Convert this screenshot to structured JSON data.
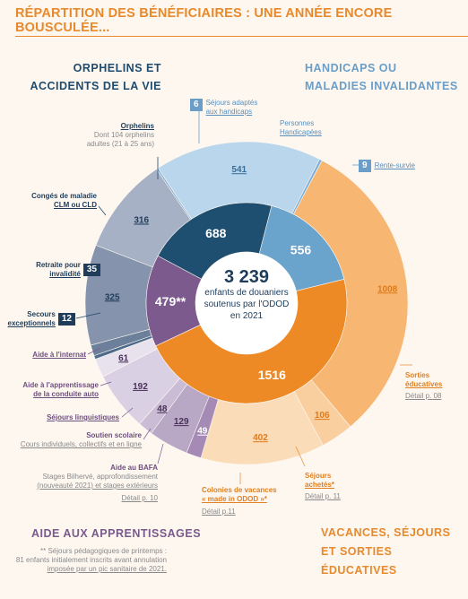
{
  "title": "RÉPARTITION DES BÉNÉFICIAIRES : UNE ANNÉE ENCORE BOUSCULÉE...",
  "sections": {
    "orphelins": [
      "ORPHELINS ET",
      "ACCIDENTS DE LA VIE"
    ],
    "handicaps": [
      "HANDICAPS OU",
      "MALADIES INVALIDANTES"
    ],
    "apprentissages": "AIDE AUX APPRENTISSAGES",
    "vacances": [
      "VACANCES, SÉJOURS",
      "ET SORTIES ÉDUCATIVES"
    ]
  },
  "center": {
    "total": "3 239",
    "line1": "enfants de douaniers",
    "line2": "soutenus par l'ODOD",
    "line3": "en 2021"
  },
  "labels": {
    "orphelins": "Orphelins",
    "orphelins_sub1": "Dont 104 orphelins",
    "orphelins_sub2": "adultes (21 à 25 ans)",
    "conges1": "Congés de maladie",
    "conges2": "CLM ou CLD",
    "retraite1": "Retraite pour",
    "retraite2": "invalidité",
    "retraite_badge": "35",
    "secours1": "Secours",
    "secours2": "exceptionnels",
    "secours_badge": "12",
    "sejours_adaptes1": "Séjours adaptés",
    "sejours_adaptes2": "aux handicaps",
    "sejours_adaptes_badge": "6",
    "personnes1": "Personnes",
    "personnes2": "Handicapées",
    "rente": "Rente-survie",
    "rente_badge": "9",
    "internat": "Aide à l'internat",
    "conduite1": "Aide à l'apprentissage",
    "conduite2": "de la conduite auto",
    "linguistiques": "Séjours linguistiques",
    "soutien": "Soutien scolaire",
    "soutien_sub": "Cours individuels, collectifs et en ligne",
    "bafa": "Aide au BAFA",
    "bafa_sub1": "Stages Bilhervé, approfondissement",
    "bafa_sub2": "(nouveauté 2021) et stages extérieurs",
    "bafa_detail": "Détail p. 10",
    "colonies1": "Colonies de vacances",
    "colonies2": "« made in ODOD »*",
    "colonies_detail": "Détail p.11",
    "sejours_achetes1": "Séjours",
    "sejours_achetes2": "achetés*",
    "sejours_achetes_detail": "Détail p. 11",
    "sorties1": "Sorties",
    "sorties2": "éducatives",
    "sorties_detail": "Détail p. 08"
  },
  "footnote": {
    "line1": "** Séjours pédagogiques de printemps :",
    "line2": "81 enfants initialement inscrits avant annulation",
    "line3": "imposée par un pic sanitaire de 2021."
  },
  "chart_data": {
    "type": "pie",
    "total": 3239,
    "inner": [
      {
        "name": "Orphelins et accidents de la vie",
        "value": 688,
        "label": "688",
        "color": "#1f4f70"
      },
      {
        "name": "Handicaps ou maladies invalidantes",
        "value": 556,
        "label": "556",
        "color": "#6aa3cc"
      },
      {
        "name": "Vacances, séjours et sorties éducatives",
        "value": 1516,
        "label": "1516",
        "color": "#ee8a25"
      },
      {
        "name": "Aide aux apprentissages",
        "value": 479,
        "label": "479**",
        "color": "#7c5a8e"
      }
    ],
    "outer": [
      {
        "name": "Orphelins",
        "value": 316,
        "color": "#a6b1c5"
      },
      {
        "name": "Séjours adaptés aux handicaps",
        "value": 6,
        "color": "#7fb0d8"
      },
      {
        "name": "Personnes Handicapées",
        "value": 541,
        "color": "#b9d6ec"
      },
      {
        "name": "Rente-survie",
        "value": 9,
        "color": "#7fb0d8"
      },
      {
        "name": "Sorties éducatives",
        "value": 1008,
        "color": "#f7b772"
      },
      {
        "name": "Séjours achetés",
        "value": 106,
        "color": "#f9cfa0"
      },
      {
        "name": "Colonies de vacances « made in ODOD »",
        "value": 402,
        "color": "#fbdcb8"
      },
      {
        "name": "Aide au BAFA",
        "value": 49,
        "color": "#a48ab4"
      },
      {
        "name": "Soutien scolaire",
        "value": 129,
        "color": "#b9a7c6"
      },
      {
        "name": "Séjours linguistiques",
        "value": 48,
        "color": "#c9bcd4"
      },
      {
        "name": "Aide à l'apprentissage de la conduite auto",
        "value": 192,
        "color": "#dad0e3"
      },
      {
        "name": "Aide à l'internat",
        "value": 61,
        "color": "#e8e2ee"
      },
      {
        "name": "Secours exceptionnels",
        "value": 12,
        "color": "#4d6b8a"
      },
      {
        "name": "Retraite pour invalidité",
        "value": 35,
        "color": "#6c809c"
      },
      {
        "name": "Congés de maladie CLM ou CLD",
        "value": 325,
        "color": "#8593ac"
      }
    ],
    "value_labels": [
      "316",
      "541",
      "1008",
      "106",
      "402",
      "49",
      "129",
      "48",
      "192",
      "61",
      "325"
    ]
  }
}
